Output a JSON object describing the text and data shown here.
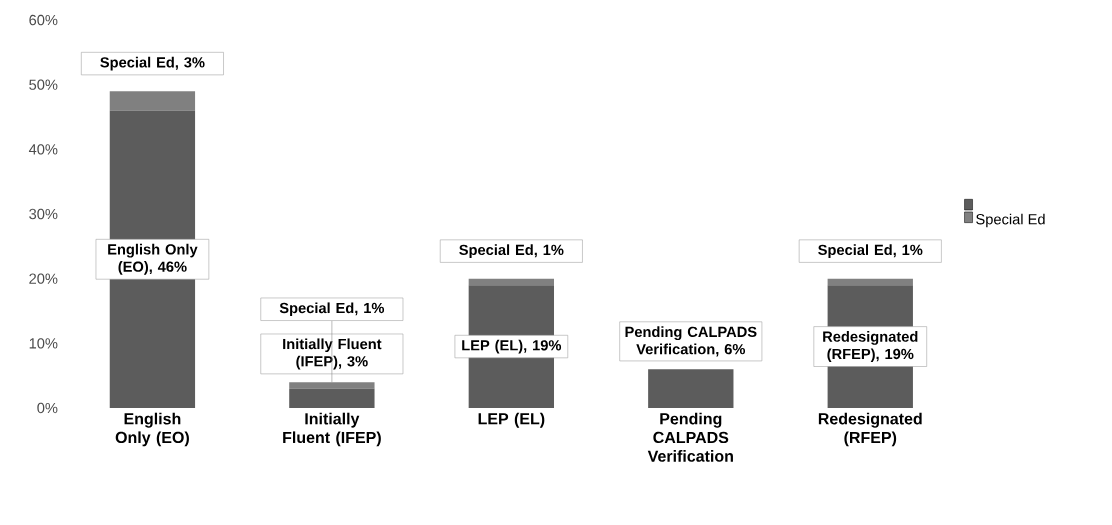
{
  "chart_data": {
    "type": "bar",
    "stacked": true,
    "categories": [
      "English Only (EO)",
      "Initially Fluent (IFEP)",
      "LEP (EL)",
      "Pending CALPADS Verification",
      "Redesignated (RFEP)"
    ],
    "series": [
      {
        "color": "#5c5c5c",
        "values": [
          46,
          3,
          19,
          6,
          19
        ],
        "value_labels": [
          "English Only (EO), 46%",
          "Initially Fluent (IFEP), 3%",
          "LEP (EL), 19%",
          "Pending CALPADS Verification, 6%",
          "Redesignated (RFEP), 19%"
        ]
      },
      {
        "name": "Special Ed",
        "color": "#808080",
        "values": [
          3,
          1,
          1,
          0,
          1
        ],
        "value_labels": [
          "Special Ed, 3%",
          "Special Ed, 1%",
          "Special Ed, 1%",
          null,
          "Special Ed, 1%"
        ]
      }
    ],
    "ylim": [
      0,
      60
    ],
    "yticks": [
      {
        "value": 0,
        "label": "0%"
      },
      {
        "value": 10,
        "label": "10%"
      },
      {
        "value": 20,
        "label": "20%"
      },
      {
        "value": 30,
        "label": "30%"
      },
      {
        "value": 40,
        "label": "40%"
      },
      {
        "value": 50,
        "label": "50%"
      },
      {
        "value": 60,
        "label": "60%"
      }
    ],
    "legend": "right"
  }
}
